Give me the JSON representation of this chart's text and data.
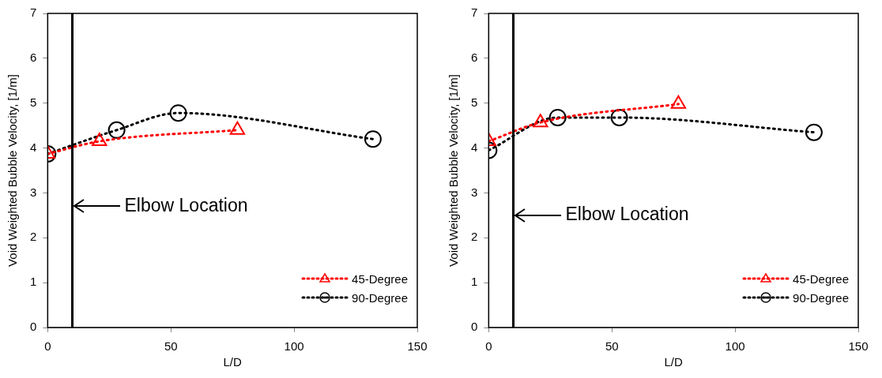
{
  "chart_data": [
    {
      "type": "line",
      "xlabel": "L/D",
      "ylabel": "Void Weighted Bubble Velocity, [1/m]",
      "xlim": [
        0,
        150
      ],
      "xticks": [
        0,
        50,
        100,
        150
      ],
      "ylim": [
        0,
        7
      ],
      "yticks": [
        0,
        1,
        2,
        3,
        4,
        5,
        6,
        7
      ],
      "grid": false,
      "legend": "bottom right",
      "line_style": "dotted",
      "series": [
        {
          "name": "45-Degree",
          "color": "#ff0000",
          "marker": "triangle",
          "x": [
            0,
            21,
            77
          ],
          "values": [
            3.87,
            4.15,
            4.4
          ]
        },
        {
          "name": "90-Degree",
          "color": "#000000",
          "marker": "circle",
          "x": [
            0,
            28,
            53,
            132
          ],
          "values": [
            3.87,
            4.4,
            4.78,
            4.2
          ]
        }
      ],
      "ref_lines": [
        {
          "axis": "x",
          "value": 10,
          "color": "#000000"
        }
      ],
      "annotations": [
        {
          "text": "Elbow Location",
          "x": 10,
          "y": 2.7
        }
      ]
    },
    {
      "type": "line",
      "xlabel": "L/D",
      "ylabel": "Void Weighted Bubble Velocity, [1/m]",
      "xlim": [
        0,
        150
      ],
      "xticks": [
        0,
        50,
        100,
        150
      ],
      "ylim": [
        0,
        7
      ],
      "yticks": [
        0,
        1,
        2,
        3,
        4,
        5,
        6,
        7
      ],
      "grid": false,
      "legend": "bottom right",
      "line_style": "dotted",
      "series": [
        {
          "name": "45-Degree",
          "color": "#ff0000",
          "marker": "triangle",
          "x": [
            0,
            21,
            77
          ],
          "values": [
            4.15,
            4.57,
            4.98
          ]
        },
        {
          "name": "90-Degree",
          "color": "#000000",
          "marker": "circle",
          "x": [
            0,
            28,
            53,
            132
          ],
          "values": [
            3.95,
            4.68,
            4.68,
            4.35
          ]
        }
      ],
      "ref_lines": [
        {
          "axis": "x",
          "value": 10,
          "color": "#000000"
        }
      ],
      "annotations": [
        {
          "text": "Elbow Location",
          "x": 10,
          "y": 2.5
        }
      ]
    }
  ]
}
